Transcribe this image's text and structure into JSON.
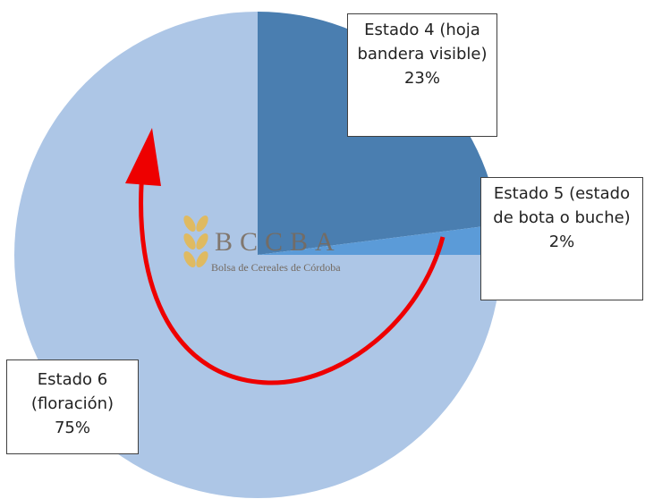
{
  "chart_data": {
    "type": "pie",
    "categories": [
      "Estado 4 (hoja bandera visible)",
      "Estado 5 (estado de bota o buche)",
      "Estado 6 (floración)"
    ],
    "values": [
      23,
      2,
      75
    ],
    "value_labels": [
      "23%",
      "2%",
      "75%"
    ],
    "colors": [
      "#4a7eb0",
      "#5b9bd8",
      "#adc6e6"
    ]
  },
  "watermark": {
    "title": "BCCBA",
    "subtitle": "Bolsa de Cereales de Córdoba"
  }
}
